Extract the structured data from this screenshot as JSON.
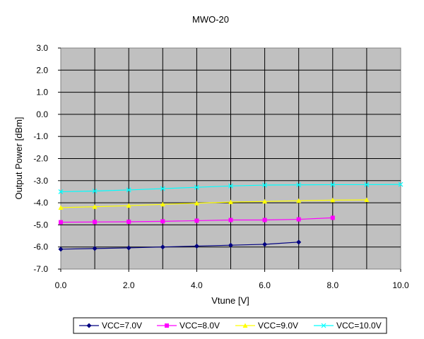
{
  "chart_data": {
    "type": "line",
    "title": "MWO-20",
    "xlabel": "Vtune [V]",
    "ylabel": "Output Power [dBm]",
    "xlim": [
      0.0,
      10.0
    ],
    "ylim": [
      -7.0,
      3.0
    ],
    "x_ticks": [
      "0.0",
      "2.0",
      "4.0",
      "6.0",
      "8.0",
      "10.0"
    ],
    "y_ticks": [
      "3.0",
      "2.0",
      "1.0",
      "0.0",
      "-1.0",
      "-2.0",
      "-3.0",
      "-4.0",
      "-5.0",
      "-6.0",
      "-7.0"
    ],
    "grid": true,
    "plot_background": "#c0c0c0",
    "legend_position": "bottom",
    "series": [
      {
        "name": "VCC=7.0V",
        "color": "#000080",
        "marker": "diamond",
        "x": [
          0,
          1,
          2,
          3,
          4,
          5,
          6,
          7
        ],
        "y": [
          -6.1,
          -6.07,
          -6.04,
          -6.0,
          -5.96,
          -5.92,
          -5.88,
          -5.78
        ]
      },
      {
        "name": "VCC=8.0V",
        "color": "#ff00ff",
        "marker": "square",
        "x": [
          0,
          1,
          2,
          3,
          4,
          5,
          6,
          7,
          8
        ],
        "y": [
          -4.88,
          -4.87,
          -4.86,
          -4.84,
          -4.81,
          -4.78,
          -4.78,
          -4.75,
          -4.68
        ]
      },
      {
        "name": "VCC=9.0V",
        "color": "#ffff00",
        "marker": "triangle",
        "x": [
          0,
          1,
          2,
          3,
          4,
          5,
          6,
          7,
          8,
          9
        ],
        "y": [
          -4.22,
          -4.18,
          -4.13,
          -4.07,
          -4.02,
          -3.97,
          -3.94,
          -3.91,
          -3.88,
          -3.87
        ]
      },
      {
        "name": "VCC=10.0V",
        "color": "#00ffff",
        "marker": "x",
        "x": [
          0,
          1,
          2,
          3,
          4,
          5,
          6,
          7,
          8,
          9,
          10
        ],
        "y": [
          -3.5,
          -3.47,
          -3.42,
          -3.36,
          -3.3,
          -3.24,
          -3.2,
          -3.19,
          -3.18,
          -3.18,
          -3.17
        ]
      }
    ]
  }
}
